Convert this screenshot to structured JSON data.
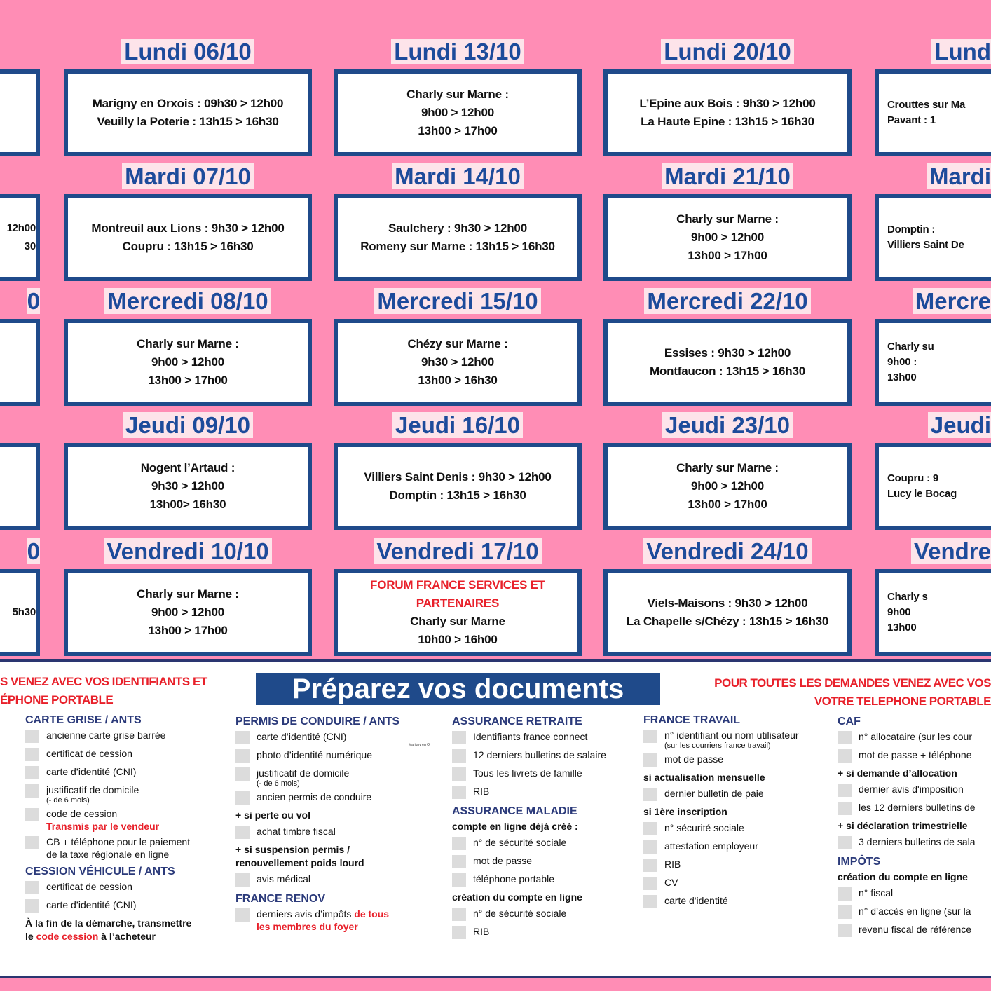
{
  "colors": {
    "background": "#ff8db5",
    "box_border": "#1f4a8a",
    "title": "#1d4b9b",
    "red": "#e8202a",
    "heading": "#2b3a7a"
  },
  "schedule": [
    {
      "days": [
        {
          "title": "",
          "lines": []
        },
        {
          "title": "",
          "lines": [
            "12h00",
            "30"
          ]
        },
        {
          "title": "0",
          "lines": []
        },
        {
          "title": "",
          "lines": []
        },
        {
          "title": "0",
          "lines": [
            "5h30"
          ]
        }
      ]
    },
    {
      "days": [
        {
          "title": "Lundi 06/10",
          "lines": [
            "Marigny en Orxois : 09h30 > 12h00",
            "Veuilly la Poterie : 13h15 > 16h30"
          ]
        },
        {
          "title": "Mardi 07/10",
          "lines": [
            "Montreuil aux Lions : 9h30 > 12h00",
            "Coupru : 13h15 > 16h30"
          ]
        },
        {
          "title": "Mercredi 08/10",
          "lines": [
            "Charly sur Marne :",
            "9h00 > 12h00",
            "13h00 > 17h00"
          ]
        },
        {
          "title": "Jeudi 09/10",
          "lines": [
            "Nogent l’Artaud :",
            "9h30 > 12h00",
            "13h00> 16h30"
          ]
        },
        {
          "title": "Vendredi 10/10",
          "lines": [
            "Charly sur Marne :",
            "9h00 > 12h00",
            "13h00 > 17h00"
          ]
        }
      ]
    },
    {
      "days": [
        {
          "title": "Lundi 13/10",
          "lines": [
            "Charly sur Marne :",
            "9h00 > 12h00",
            "13h00 > 17h00"
          ]
        },
        {
          "title": "Mardi 14/10",
          "lines": [
            "Saulchery : 9h30 > 12h00",
            "Romeny sur Marne : 13h15 > 16h30"
          ]
        },
        {
          "title": "Mercredi 15/10",
          "lines": [
            "Chézy sur Marne :",
            "9h30 > 12h00",
            "13h00 > 16h30"
          ]
        },
        {
          "title": "Jeudi 16/10",
          "lines": [
            "Villiers Saint Denis : 9h30 > 12h00",
            "Domptin : 13h15 > 16h30"
          ]
        },
        {
          "title": "Vendredi 17/10",
          "red_lines": [
            "FORUM FRANCE SERVICES ET",
            "PARTENAIRES"
          ],
          "lines": [
            "Charly sur Marne",
            "10h00 > 16h00"
          ]
        }
      ]
    },
    {
      "days": [
        {
          "title": "Lundi 20/10",
          "lines": [
            "L’Epine aux Bois : 9h30 > 12h00",
            "La Haute Epine : 13h15 > 16h30"
          ]
        },
        {
          "title": "Mardi 21/10",
          "lines": [
            "Charly sur Marne :",
            "9h00 > 12h00",
            "13h00 > 17h00"
          ]
        },
        {
          "title": "Mercredi 22/10",
          "lines": [
            "Essises : 9h30 > 12h00",
            "Montfaucon : 13h15 > 16h30"
          ]
        },
        {
          "title": "Jeudi 23/10",
          "lines": [
            "Charly sur Marne :",
            "9h00 > 12h00",
            "13h00 > 17h00"
          ]
        },
        {
          "title": "Vendredi 24/10",
          "lines": [
            "Viels-Maisons : 9h30 > 12h00",
            "La Chapelle s/Chézy : 13h15 > 16h30"
          ]
        }
      ]
    },
    {
      "days": [
        {
          "title": "Lund",
          "lines": [
            "Crouttes sur Ma",
            "Pavant : 1"
          ]
        },
        {
          "title": "Mardi",
          "lines": [
            "Domptin :",
            "Villiers Saint De"
          ]
        },
        {
          "title": "Mercre",
          "lines": [
            "Charly su",
            "9h00 :",
            "13h00"
          ]
        },
        {
          "title": "Jeudi",
          "lines": [
            "Coupru : 9",
            "Lucy le Bocag"
          ]
        },
        {
          "title": "Vendre",
          "lines": [
            "Charly s",
            "9h00",
            "13h00"
          ]
        }
      ]
    }
  ],
  "documents": {
    "title": "Préparez vos documents",
    "left_notice": [
      "S VENEZ AVEC VOS IDENTIFIANTS ET",
      "ÉPHONE PORTABLE"
    ],
    "right_notice": [
      "POUR TOUTES LES DEMANDES VENEZ AVEC VOS",
      "VOTRE TELEPHONE PORTABLE"
    ],
    "tiny_note": "Marigny en O.",
    "columns": [
      {
        "items": [
          {
            "type": "h",
            "text": "CARTE GRISE / ANTS"
          },
          {
            "type": "c",
            "text": "ancienne carte grise barrée"
          },
          {
            "type": "c",
            "text": "certificat de cession"
          },
          {
            "type": "c",
            "text": "carte d’identité (CNI)"
          },
          {
            "type": "c",
            "text": "justificatif de domicile",
            "sub": "(- de 6 mois)"
          },
          {
            "type": "c",
            "text": "code de cession",
            "red": "Transmis par le vendeur"
          },
          {
            "type": "c",
            "text": "CB + téléphone pour le paiement",
            "text2": "de la taxe régionale en ligne"
          },
          {
            "type": "h",
            "text": "CESSION VÉHICULE / ANTS"
          },
          {
            "type": "c",
            "text": "certificat de cession"
          },
          {
            "type": "c",
            "text": "carte d’identité (CNI)"
          },
          {
            "type": "b",
            "parts": [
              "À la fin de la démarche, transmettre",
              "le ",
              "code cession",
              " à l’acheteur"
            ]
          }
        ]
      },
      {
        "items": [
          {
            "type": "h",
            "text": "PERMIS DE CONDUIRE / ANTS"
          },
          {
            "type": "c",
            "text": "carte d’identité (CNI)"
          },
          {
            "type": "c",
            "text": "photo d’identité numérique"
          },
          {
            "type": "c",
            "text": "justificatif de domicile",
            "sub": "(- de 6 mois)"
          },
          {
            "type": "c",
            "text": "ancien permis de conduire"
          },
          {
            "type": "b",
            "text": "+ si perte ou vol"
          },
          {
            "type": "c",
            "text": "achat timbre fiscal"
          },
          {
            "type": "b",
            "text": "+ si suspension permis /",
            "text2": "renouvellement poids lourd"
          },
          {
            "type": "c",
            "text": "avis médical"
          },
          {
            "type": "h",
            "text": "FRANCE RENOV"
          },
          {
            "type": "c",
            "text": "derniers avis d’impôts ",
            "red_inline": "de tous",
            "red2": "les membres du foyer"
          }
        ]
      },
      {
        "items": [
          {
            "type": "h",
            "text": "ASSURANCE RETRAITE"
          },
          {
            "type": "c",
            "text": "Identifiants france connect"
          },
          {
            "type": "c",
            "text": "12 derniers bulletins de salaire"
          },
          {
            "type": "c",
            "text": "Tous les livrets de famille"
          },
          {
            "type": "c",
            "text": "RIB"
          },
          {
            "type": "h",
            "text": "ASSURANCE MALADIE"
          },
          {
            "type": "b",
            "text": "compte en ligne déjà créé :"
          },
          {
            "type": "c",
            "text": "n° de sécurité sociale"
          },
          {
            "type": "c",
            "text": "mot de passe"
          },
          {
            "type": "c",
            "text": "téléphone portable"
          },
          {
            "type": "b",
            "text": "création du compte en ligne"
          },
          {
            "type": "c",
            "text": "n° de sécurité sociale"
          },
          {
            "type": "c",
            "text": "RIB"
          }
        ]
      },
      {
        "items": [
          {
            "type": "h",
            "text": "FRANCE TRAVAIL"
          },
          {
            "type": "c",
            "text": "n° identifiant ou nom utilisateur",
            "sub": "(sur les courriers france travail)"
          },
          {
            "type": "c",
            "text": "mot de passe"
          },
          {
            "type": "b",
            "text": "si actualisation mensuelle"
          },
          {
            "type": "c",
            "text": "dernier bulletin de paie"
          },
          {
            "type": "b",
            "text": "si 1ère inscription"
          },
          {
            "type": "c",
            "text": "n° sécurité sociale"
          },
          {
            "type": "c",
            "text": "attestation employeur"
          },
          {
            "type": "c",
            "text": "RIB"
          },
          {
            "type": "c",
            "text": "CV"
          },
          {
            "type": "c",
            "text": "carte d'identité"
          }
        ]
      },
      {
        "items": [
          {
            "type": "h",
            "text": "CAF"
          },
          {
            "type": "c",
            "text": "n° allocataire (sur les cour"
          },
          {
            "type": "c",
            "text": "mot de passe + téléphone"
          },
          {
            "type": "b",
            "text": "+ si demande d’allocation"
          },
          {
            "type": "c",
            "text": "dernier avis d'imposition"
          },
          {
            "type": "c",
            "text": "les 12 derniers bulletins de"
          },
          {
            "type": "b",
            "text": "+ si déclaration trimestrielle"
          },
          {
            "type": "c",
            "text": "3 derniers bulletins de sala"
          },
          {
            "type": "h",
            "text": "IMPÔTS"
          },
          {
            "type": "b",
            "text": "création du compte en ligne"
          },
          {
            "type": "c",
            "text": "n° fiscal"
          },
          {
            "type": "c",
            "text": "n° d’accès en ligne (sur la"
          },
          {
            "type": "c",
            "text": "revenu fiscal de référence"
          }
        ]
      }
    ]
  }
}
